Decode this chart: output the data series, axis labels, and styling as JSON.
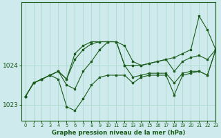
{
  "title": "Graphe pression niveau de la mer (hPa)",
  "bg_color": "#ceeaed",
  "grid_color": "#a8d5c8",
  "line_color": "#1a5c1a",
  "xlim": [
    -0.5,
    23
  ],
  "ylim": [
    1022.6,
    1025.6
  ],
  "yticks": [
    1023,
    1024
  ],
  "xticks": [
    0,
    1,
    2,
    3,
    4,
    5,
    6,
    7,
    8,
    9,
    10,
    11,
    12,
    13,
    14,
    15,
    16,
    17,
    18,
    19,
    20,
    21,
    22,
    23
  ],
  "series": [
    [
      1023.2,
      1023.55,
      1023.65,
      1023.75,
      1023.85,
      1023.65,
      1024.3,
      1024.5,
      1024.6,
      1024.6,
      1024.6,
      1024.6,
      1024.5,
      1024.1,
      1024.0,
      1024.05,
      1024.1,
      1024.15,
      1024.2,
      1024.3,
      1024.4,
      1025.25,
      1024.9,
      1024.4
    ],
    [
      1023.2,
      1023.55,
      1023.65,
      1023.75,
      1023.85,
      1023.65,
      1024.15,
      1024.4,
      1024.55,
      1024.6,
      1024.6,
      1024.6,
      1024.0,
      1024.0,
      1024.0,
      1024.05,
      1024.1,
      1024.15,
      1023.85,
      1024.1,
      1024.2,
      1024.25,
      1024.15,
      1024.4
    ],
    [
      1023.2,
      1023.55,
      1023.65,
      1023.75,
      1023.85,
      1023.5,
      1023.4,
      1023.85,
      1024.1,
      1024.4,
      1024.6,
      1024.6,
      1024.0,
      1023.7,
      1023.75,
      1023.8,
      1023.8,
      1023.8,
      1023.55,
      1023.8,
      1023.85,
      1023.85,
      1023.75,
      1024.4
    ],
    [
      1023.2,
      1023.55,
      1023.65,
      1023.75,
      1023.65,
      1022.95,
      1022.85,
      1023.15,
      1023.5,
      1023.7,
      1023.75,
      1023.75,
      1023.75,
      1023.55,
      1023.7,
      1023.75,
      1023.75,
      1023.75,
      1023.25,
      1023.75,
      1023.8,
      1023.85,
      1023.75,
      1024.4
    ]
  ]
}
